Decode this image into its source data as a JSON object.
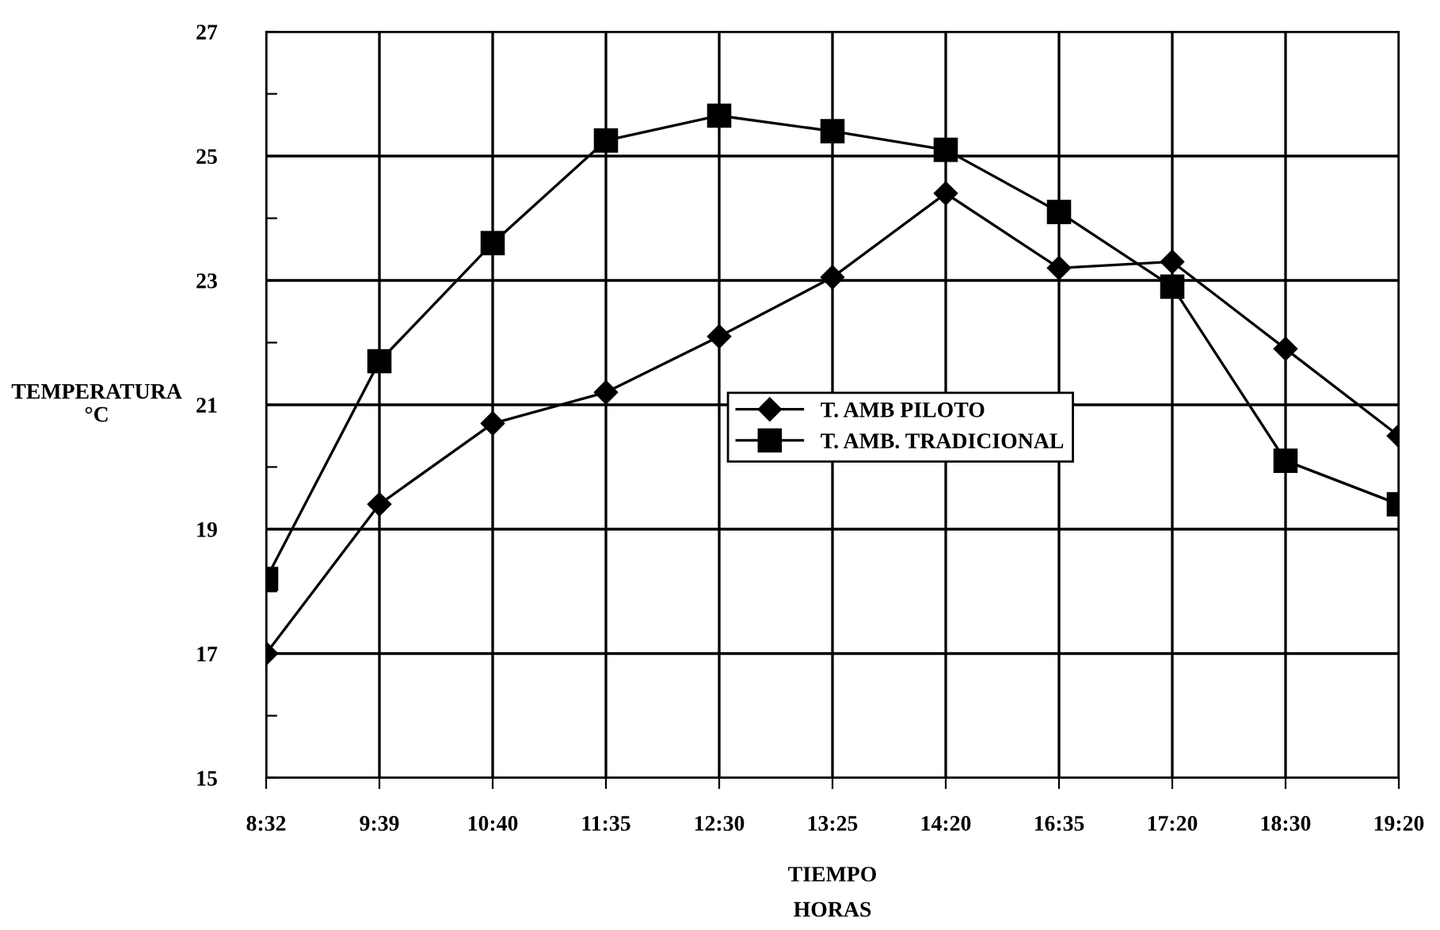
{
  "chart_data": {
    "type": "line",
    "xlabel": "TIEMPO\nHORAS",
    "ylabel": "TEMPERATURA\n°C",
    "categories": [
      "8:32",
      "9:39",
      "10:40",
      "11:35",
      "12:30",
      "13:25",
      "14:20",
      "16:35",
      "17:20",
      "18:30",
      "19:20"
    ],
    "series": [
      {
        "name": "T. AMB PILOTO",
        "color": "#000000",
        "marker": "diamond",
        "values": [
          17.0,
          19.4,
          20.7,
          21.2,
          22.1,
          23.05,
          24.4,
          23.2,
          23.3,
          21.9,
          20.5
        ]
      },
      {
        "name": "T. AMB. TRADICIONAL",
        "color": "#000000",
        "marker": "square",
        "values": [
          18.2,
          21.7,
          23.6,
          25.25,
          25.65,
          25.4,
          25.1,
          24.1,
          22.9,
          20.1,
          19.4
        ]
      }
    ],
    "ylim": [
      15,
      27
    ],
    "yticks": [
      15,
      {
        "value": 16,
        "label": null
      },
      17,
      {
        "value": 18,
        "label": null
      },
      19,
      {
        "value": 20,
        "label": null
      },
      21,
      {
        "value": 22,
        "label": null
      },
      23,
      {
        "value": 24,
        "label": null
      },
      25,
      {
        "value": 26,
        "label": null
      },
      27
    ],
    "grid": true,
    "legend": "center",
    "line_style": "solid"
  }
}
